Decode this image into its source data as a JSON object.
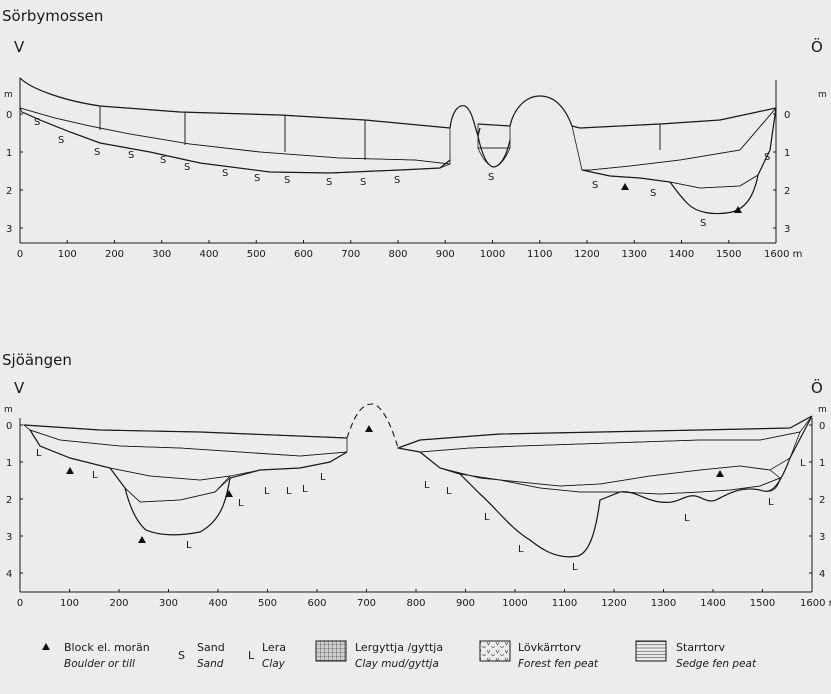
{
  "profiles": [
    {
      "title": "Sörbymossen",
      "west": "V",
      "east": "Ö",
      "unit_left": "m",
      "unit_right": "m",
      "depth_ticks": [
        "0",
        "1",
        "2",
        "3"
      ],
      "x_ticks": [
        "0",
        "100",
        "200",
        "300",
        "400",
        "500",
        "600",
        "700",
        "800",
        "900",
        "1000",
        "1100",
        "1200",
        "1300",
        "1400",
        "1500",
        "1600 m"
      ]
    },
    {
      "title": "Sjöängen",
      "west": "V",
      "east": "Ö",
      "unit_left": "m",
      "unit_right": "m",
      "depth_ticks": [
        "0",
        "1",
        "2",
        "3",
        "4"
      ],
      "x_ticks": [
        "0",
        "100",
        "200",
        "300",
        "400",
        "500",
        "600",
        "700",
        "800",
        "900",
        "1000",
        "1100",
        "1200",
        "1300",
        "1400",
        "1500",
        "1600 m"
      ]
    }
  ],
  "markers": {
    "sand": "S",
    "clay": "L"
  },
  "legend": [
    {
      "symbol": "▲",
      "label": "Block el. morän",
      "translation": "Boulder or till"
    },
    {
      "symbol": "S",
      "label": "Sand",
      "translation": "Sand"
    },
    {
      "symbol": "L",
      "label": "Lera",
      "translation": "Clay"
    },
    {
      "symbol": "",
      "label": "Lergyttja /gyttja",
      "translation": "Clay mud/gyttja"
    },
    {
      "symbol": "",
      "label": "Lövkärrtorv",
      "translation": "Forest fen peat"
    },
    {
      "symbol": "",
      "label": "Starrtorv",
      "translation": "Sedge fen peat"
    }
  ]
}
